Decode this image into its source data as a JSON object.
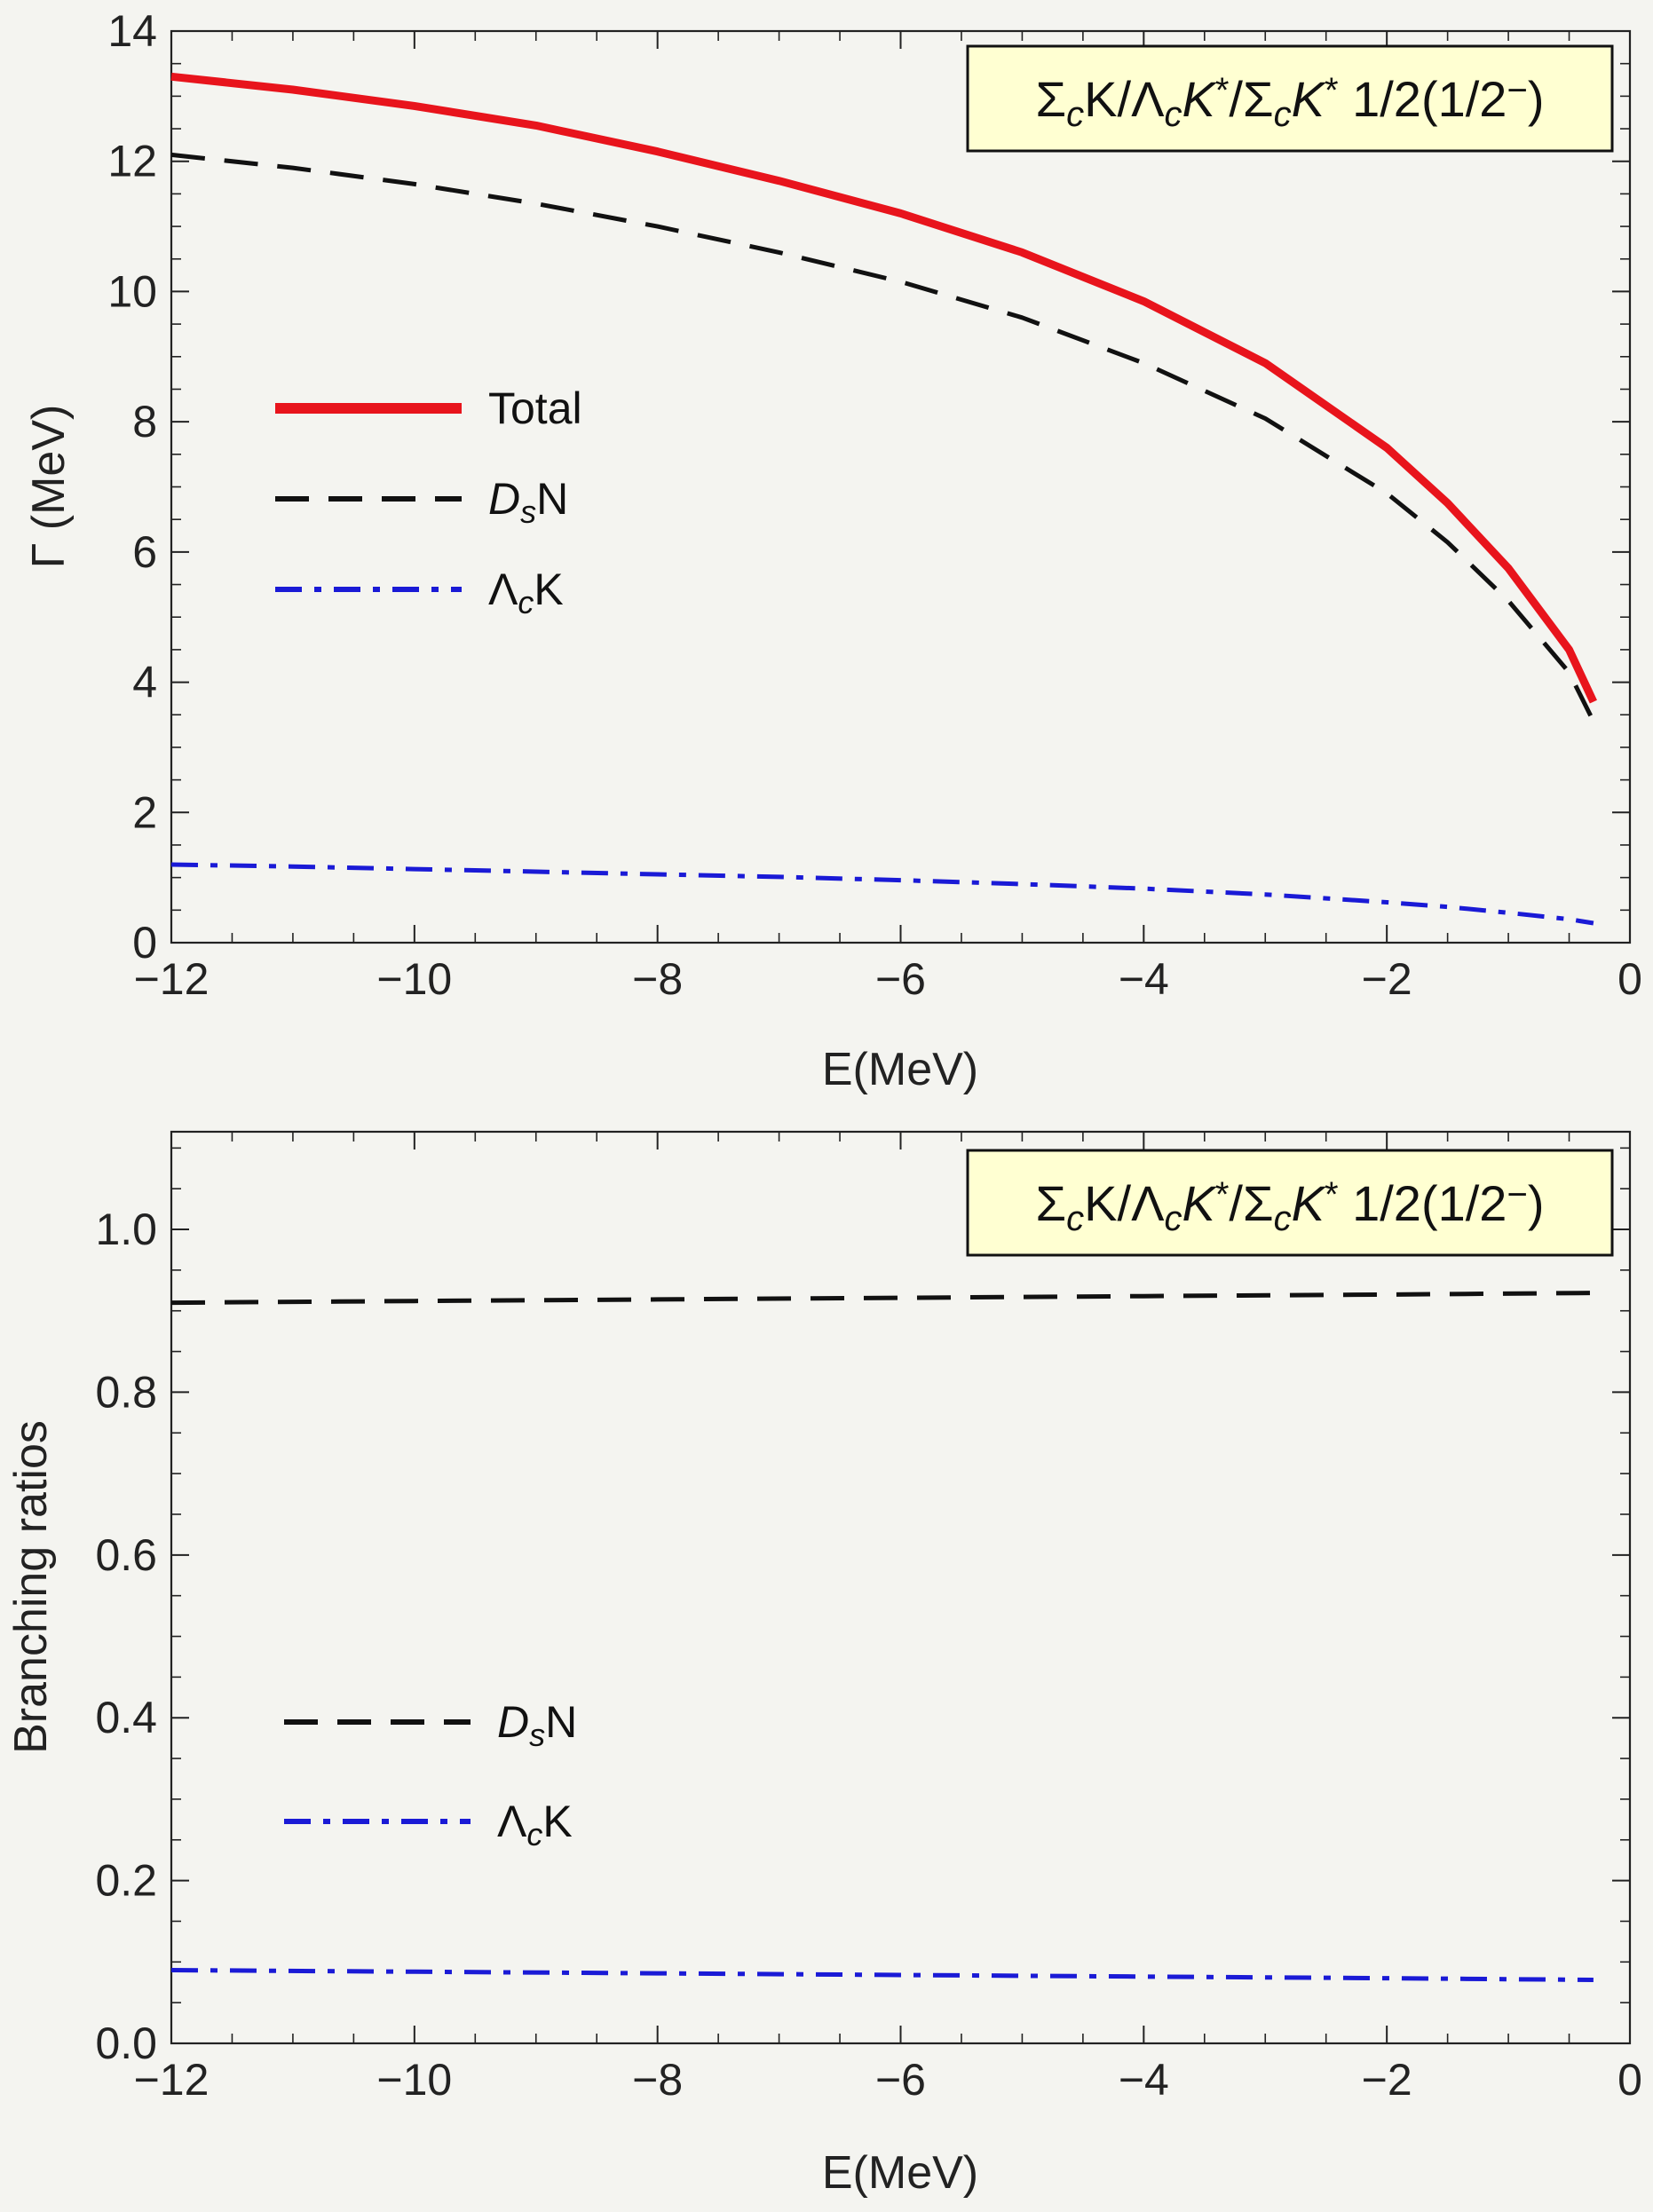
{
  "chart_data": [
    {
      "type": "line",
      "title": "ΣcK/ΛcK*/ΣcK* 1/2(1/2⁻)",
      "title_parts": [
        {
          "t": "Σ"
        },
        {
          "t": "c",
          "sub": true,
          "italic": true
        },
        {
          "t": "K/Λ"
        },
        {
          "t": "c",
          "sub": true,
          "italic": true
        },
        {
          "t": "K",
          "italic": true
        },
        {
          "t": "*",
          "sup": true
        },
        {
          "t": "/Σ"
        },
        {
          "t": "c",
          "sub": true,
          "italic": true
        },
        {
          "t": "K",
          "italic": true
        },
        {
          "t": "*",
          "sup": true
        },
        {
          "t": " 1/2(1/2"
        },
        {
          "t": "−",
          "sup": true
        },
        {
          "t": ")"
        }
      ],
      "xlabel": "E(MeV)",
      "ylabel": "Γ (MeV)",
      "xlim": [
        -12,
        0
      ],
      "ylim": [
        0,
        14
      ],
      "xticks": [
        -12,
        -10,
        -8,
        -6,
        -4,
        -2,
        0
      ],
      "xtick_labels": [
        "−12",
        "−10",
        "−8",
        "−6",
        "−4",
        "−2",
        "0"
      ],
      "yticks": [
        0,
        2,
        4,
        6,
        8,
        10,
        12,
        14
      ],
      "ytick_labels": [
        "0",
        "2",
        "4",
        "6",
        "8",
        "10",
        "12",
        "14"
      ],
      "grid": false,
      "legend_position": "middle-left",
      "series": [
        {
          "name": "Total",
          "legend_parts": [
            {
              "t": "Total"
            }
          ],
          "style": "solid",
          "color": "#e8141c",
          "x": [
            -12,
            -11,
            -10,
            -9,
            -8,
            -7,
            -6,
            -5,
            -4,
            -3,
            -2,
            -1.5,
            -1,
            -0.5,
            -0.3
          ],
          "values": [
            13.3,
            13.1,
            12.85,
            12.55,
            12.15,
            11.7,
            11.2,
            10.6,
            9.85,
            8.9,
            7.6,
            6.75,
            5.75,
            4.5,
            3.7
          ]
        },
        {
          "name": "DsN",
          "legend_parts": [
            {
              "t": "D",
              "italic": true
            },
            {
              "t": "s",
              "sub": true,
              "italic": true
            },
            {
              "t": "N"
            }
          ],
          "style": "dashed",
          "color": "#111111",
          "x": [
            -12,
            -11,
            -10,
            -9,
            -8,
            -7,
            -6,
            -5,
            -4,
            -3,
            -2,
            -1.5,
            -1,
            -0.5,
            -0.3
          ],
          "values": [
            12.1,
            11.9,
            11.65,
            11.35,
            11.0,
            10.6,
            10.15,
            9.6,
            8.9,
            8.05,
            6.9,
            6.15,
            5.25,
            4.15,
            3.4
          ]
        },
        {
          "name": "ΛcK",
          "legend_parts": [
            {
              "t": "Λ"
            },
            {
              "t": "c",
              "sub": true,
              "italic": true
            },
            {
              "t": "K"
            }
          ],
          "style": "dashdot",
          "color": "#1a1ad6",
          "x": [
            -12,
            -11,
            -10,
            -9,
            -8,
            -7,
            -6,
            -5,
            -4,
            -3,
            -2,
            -1.5,
            -1,
            -0.5,
            -0.3
          ],
          "values": [
            1.2,
            1.17,
            1.13,
            1.09,
            1.05,
            1.01,
            0.96,
            0.9,
            0.83,
            0.74,
            0.62,
            0.55,
            0.46,
            0.36,
            0.3
          ]
        }
      ]
    },
    {
      "type": "line",
      "title": "ΣcK/ΛcK*/ΣcK* 1/2(1/2⁻)",
      "title_parts": [
        {
          "t": "Σ"
        },
        {
          "t": "c",
          "sub": true,
          "italic": true
        },
        {
          "t": "K/Λ"
        },
        {
          "t": "c",
          "sub": true,
          "italic": true
        },
        {
          "t": "K",
          "italic": true
        },
        {
          "t": "*",
          "sup": true
        },
        {
          "t": "/Σ"
        },
        {
          "t": "c",
          "sub": true,
          "italic": true
        },
        {
          "t": "K",
          "italic": true
        },
        {
          "t": "*",
          "sup": true
        },
        {
          "t": " 1/2(1/2"
        },
        {
          "t": "−",
          "sup": true
        },
        {
          "t": ")"
        }
      ],
      "xlabel": "E(MeV)",
      "ylabel": "Branching ratios",
      "xlim": [
        -12,
        0
      ],
      "ylim": [
        0,
        1.12
      ],
      "xticks": [
        -12,
        -10,
        -8,
        -6,
        -4,
        -2,
        0
      ],
      "xtick_labels": [
        "−12",
        "−10",
        "−8",
        "−6",
        "−4",
        "−2",
        "0"
      ],
      "yticks": [
        0,
        0.2,
        0.4,
        0.6,
        0.8,
        1.0
      ],
      "ytick_labels": [
        "0.0",
        "0.2",
        "0.4",
        "0.6",
        "0.8",
        "1.0"
      ],
      "grid": false,
      "legend_position": "lower-left",
      "series": [
        {
          "name": "DsN",
          "legend_parts": [
            {
              "t": "D",
              "italic": true
            },
            {
              "t": "s",
              "sub": true,
              "italic": true
            },
            {
              "t": "N"
            }
          ],
          "style": "dashed",
          "color": "#111111",
          "x": [
            -12,
            -10,
            -8,
            -6,
            -4,
            -2,
            -0.3
          ],
          "values": [
            0.91,
            0.912,
            0.914,
            0.916,
            0.918,
            0.92,
            0.922
          ]
        },
        {
          "name": "ΛcK",
          "legend_parts": [
            {
              "t": "Λ"
            },
            {
              "t": "c",
              "sub": true,
              "italic": true
            },
            {
              "t": "K"
            }
          ],
          "style": "dashdot",
          "color": "#1a1ad6",
          "x": [
            -12,
            -10,
            -8,
            -6,
            -4,
            -2,
            -0.3
          ],
          "values": [
            0.09,
            0.088,
            0.086,
            0.084,
            0.082,
            0.08,
            0.078
          ]
        }
      ]
    }
  ]
}
